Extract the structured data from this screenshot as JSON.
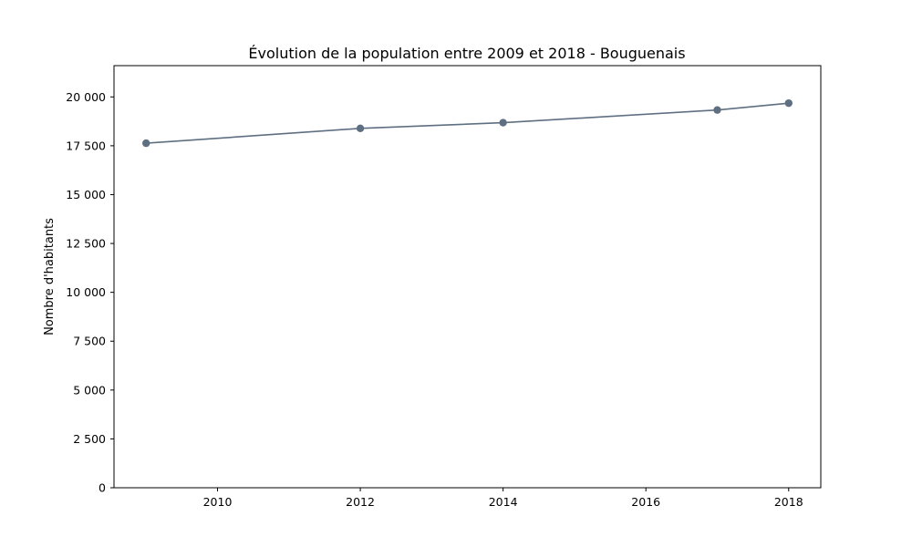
{
  "chart_data": {
    "type": "line",
    "title": "Évolution de la population entre 2009 et 2018 - Bouguenais",
    "xlabel": "",
    "ylabel": "Nombre d'habitants",
    "xlim": [
      2008.55,
      2018.45
    ],
    "ylim": [
      0,
      21600
    ],
    "x_ticks": [
      2010,
      2012,
      2014,
      2016,
      2018
    ],
    "x_tick_labels": [
      "2010",
      "2012",
      "2014",
      "2016",
      "2018"
    ],
    "y_ticks": [
      0,
      2500,
      5000,
      7500,
      10000,
      12500,
      15000,
      17500,
      20000
    ],
    "y_tick_labels": [
      "0",
      "2 500",
      "5 000",
      "7 500",
      "10 000",
      "12 500",
      "15 000",
      "17 500",
      "20 000"
    ],
    "grid": false,
    "series": [
      {
        "color": "#5f6f82",
        "x": [
          2009,
          2012,
          2014,
          2017,
          2018
        ],
        "y": [
          17630,
          18390,
          18680,
          19330,
          19680
        ]
      }
    ]
  }
}
